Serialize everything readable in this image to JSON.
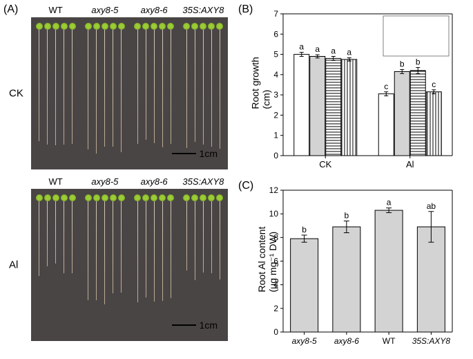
{
  "panelA": {
    "label": "(A)",
    "top": {
      "side_label": "CK",
      "genotypes": [
        "WT",
        "axy8-5",
        "axy8-6",
        "35S:AXY8"
      ],
      "root_lengths": [
        170,
        170,
        165,
        165
      ],
      "scalebar": "1cm"
    },
    "bottom": {
      "side_label": "Al",
      "genotypes": [
        "WT",
        "axy8-5",
        "axy8-6",
        "35S:AXY8"
      ],
      "root_lengths": [
        100,
        140,
        140,
        105
      ],
      "scalebar": "1cm"
    }
  },
  "panelB": {
    "label": "(B)",
    "ylabel": "Root growth\n(cm)",
    "ylim": [
      0,
      7
    ],
    "ytick_step": 1,
    "groups": [
      "CK",
      "Al"
    ],
    "series": [
      "WT",
      "axy8-5",
      "axy8-6",
      "35S:AXY8"
    ],
    "series_italic": [
      false,
      true,
      true,
      true
    ],
    "series_fills": [
      "#ffffff",
      "#d3d3d3",
      "hstripe",
      "vstripe"
    ],
    "values": {
      "CK": [
        5.0,
        4.9,
        4.8,
        4.75
      ],
      "Al": [
        3.05,
        4.15,
        4.2,
        3.15
      ]
    },
    "errors": {
      "CK": [
        0.1,
        0.08,
        0.1,
        0.08
      ],
      "Al": [
        0.1,
        0.1,
        0.15,
        0.1
      ]
    },
    "sig": {
      "CK": [
        "a",
        "a",
        "a",
        "a"
      ],
      "Al": [
        "c",
        "b",
        "b",
        "c"
      ]
    },
    "colors": {
      "axis": "#000000",
      "bg": "#ffffff"
    }
  },
  "panelC": {
    "label": "(C)",
    "ylabel": "Root Al content\n(μg mg⁻¹ DW)",
    "ylim": [
      0,
      12
    ],
    "ytick_step": 2,
    "categories": [
      "axy8-5",
      "axy8-6",
      "WT",
      "35S:AXY8"
    ],
    "cat_italic": [
      true,
      true,
      false,
      true
    ],
    "values": [
      7.9,
      8.9,
      10.3,
      8.9
    ],
    "errors": [
      0.3,
      0.5,
      0.2,
      1.3
    ],
    "sig": [
      "b",
      "b",
      "a",
      "ab"
    ],
    "bar_fill": "#d3d3d3",
    "colors": {
      "axis": "#000000",
      "bg": "#ffffff"
    }
  }
}
